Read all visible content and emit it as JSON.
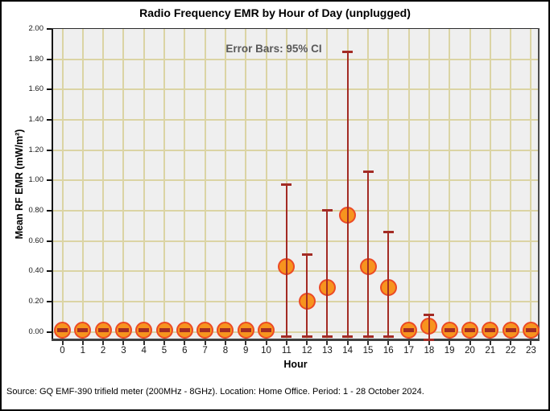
{
  "caption": "Source: GQ EMF-390 trifield meter (200MHz - 8GHz). Location: Home Office. Period: 1 - 28 October 2024.",
  "chart_data": {
    "type": "scatter",
    "title": "Radio Frequency EMR by Hour of Day (unplugged)",
    "annotation": "Error Bars: 95% CI",
    "error_bars": "95% CI",
    "xlabel": "Hour",
    "ylabel": "Mean RF EMR (mW/m²)",
    "x": [
      0,
      1,
      2,
      3,
      4,
      5,
      6,
      7,
      8,
      9,
      10,
      11,
      12,
      13,
      14,
      15,
      16,
      17,
      18,
      19,
      20,
      21,
      22,
      23
    ],
    "means": [
      0.01,
      0.01,
      0.01,
      0.01,
      0.01,
      0.01,
      0.01,
      0.01,
      0.01,
      0.01,
      0.01,
      0.43,
      0.2,
      0.29,
      0.77,
      0.43,
      0.29,
      0.01,
      0.04,
      0.01,
      0.01,
      0.01,
      0.01,
      0.01
    ],
    "ci_high": [
      0.015,
      0.015,
      0.015,
      0.015,
      0.015,
      0.015,
      0.015,
      0.015,
      0.015,
      0.015,
      0.015,
      0.97,
      0.51,
      0.8,
      1.85,
      1.06,
      0.66,
      0.015,
      0.11,
      0.015,
      0.015,
      0.015,
      0.015,
      0.015
    ],
    "ci_low": [
      0.005,
      0.005,
      0.005,
      0.005,
      0.005,
      0.005,
      0.005,
      0.005,
      0.005,
      0.005,
      0.005,
      -0.03,
      -0.03,
      -0.03,
      -0.03,
      -0.03,
      -0.03,
      0.005,
      -0.05,
      0.005,
      0.005,
      0.005,
      0.005,
      0.005
    ],
    "ylim": [
      -0.05,
      2.0
    ],
    "yticks": [
      0.0,
      0.2,
      0.4,
      0.6,
      0.8,
      1.0,
      1.2,
      1.4,
      1.6,
      1.8,
      2.0
    ],
    "grid": true,
    "legend": "none",
    "colors": {
      "marker_fill": "#F7941E",
      "marker_stroke": "#EB4A26",
      "error_bar": "#A32B24",
      "grid": "#DBD4A4",
      "plot_bg": "#EFEFEF",
      "annotation_text": "#595959",
      "axis_text": "#1A1A1A"
    }
  }
}
